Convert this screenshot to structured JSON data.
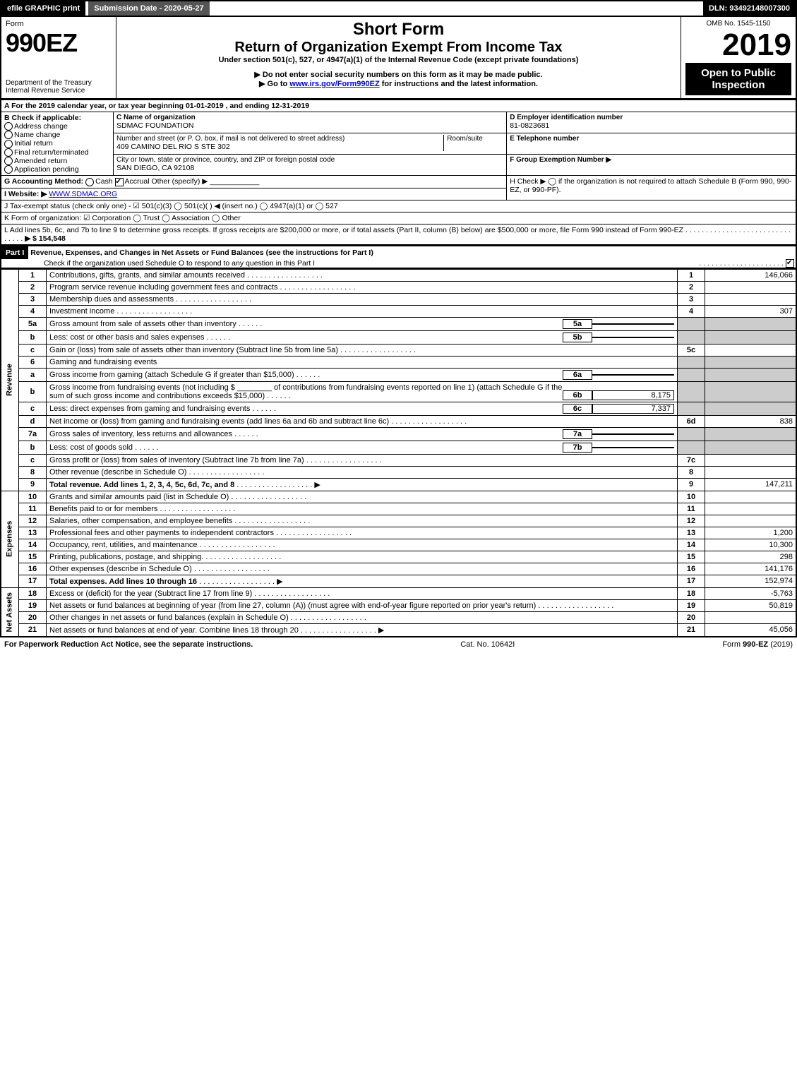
{
  "topbar": {
    "efile": "efile GRAPHIC print",
    "submission": "Submission Date - 2020-05-27",
    "dln": "DLN: 93492148007300"
  },
  "header": {
    "form_label": "Form",
    "form_number": "990EZ",
    "dept": "Department of the Treasury",
    "irs": "Internal Revenue Service",
    "short_form": "Short Form",
    "return_title": "Return of Organization Exempt From Income Tax",
    "under": "Under section 501(c), 527, or 4947(a)(1) of the Internal Revenue Code (except private foundations)",
    "warn": "▶ Do not enter social security numbers on this form as it may be made public.",
    "goto_pre": "▶ Go to ",
    "goto_link": "www.irs.gov/Form990EZ",
    "goto_post": " for instructions and the latest information.",
    "omb": "OMB No. 1545-1150",
    "year": "2019",
    "open": "Open to Public Inspection"
  },
  "line_a": "A  For the 2019 calendar year, or tax year beginning 01-01-2019 , and ending 12-31-2019",
  "section_b": {
    "title": "B  Check if applicable:",
    "items": [
      "Address change",
      "Name change",
      "Initial return",
      "Final return/terminated",
      "Amended return",
      "Application pending"
    ]
  },
  "section_c": {
    "name_label": "C Name of organization",
    "name": "SDMAC FOUNDATION",
    "street_label": "Number and street (or P. O. box, if mail is not delivered to street address)",
    "room_label": "Room/suite",
    "street": "409 CAMINO DEL RIO S STE 302",
    "city_label": "City or town, state or province, country, and ZIP or foreign postal code",
    "city": "SAN DIEGO, CA  92108"
  },
  "section_d": {
    "label": "D Employer identification number",
    "value": "81-0823681"
  },
  "section_e": {
    "label": "E Telephone number",
    "value": ""
  },
  "section_f": {
    "label": "F Group Exemption Number  ▶",
    "value": ""
  },
  "line_g": {
    "label": "G Accounting Method:",
    "cash": "Cash",
    "accrual": "Accrual",
    "other": "Other (specify) ▶"
  },
  "line_h": "H  Check ▶  ◯ if the organization is not required to attach Schedule B (Form 990, 990-EZ, or 990-PF).",
  "line_i": {
    "label": "I Website: ▶",
    "value": "WWW.SDMAC.ORG"
  },
  "line_j": "J Tax-exempt status (check only one) - ☑ 501(c)(3) ◯ 501(c)(  ) ◀ (insert no.) ◯ 4947(a)(1) or ◯ 527",
  "line_k": "K Form of organization:  ☑ Corporation  ◯ Trust  ◯ Association  ◯ Other",
  "line_l": {
    "text": "L Add lines 5b, 6c, and 7b to line 9 to determine gross receipts. If gross receipts are $200,000 or more, or if total assets (Part II, column (B) below) are $500,000 or more, file Form 990 instead of Form 990-EZ",
    "amount": "▶ $ 154,548"
  },
  "part1": {
    "label": "Part I",
    "title": "Revenue, Expenses, and Changes in Net Assets or Fund Balances (see the instructions for Part I)",
    "check": "Check if the organization used Schedule O to respond to any question in this Part I"
  },
  "sides": {
    "revenue": "Revenue",
    "expenses": "Expenses",
    "netassets": "Net Assets"
  },
  "rows": [
    {
      "n": "1",
      "desc": "Contributions, gifts, grants, and similar amounts received",
      "col": "1",
      "amt": "146,066"
    },
    {
      "n": "2",
      "desc": "Program service revenue including government fees and contracts",
      "col": "2",
      "amt": ""
    },
    {
      "n": "3",
      "desc": "Membership dues and assessments",
      "col": "3",
      "amt": ""
    },
    {
      "n": "4",
      "desc": "Investment income",
      "col": "4",
      "amt": "307"
    },
    {
      "n": "5a",
      "desc": "Gross amount from sale of assets other than inventory",
      "sub": "5a",
      "subval": ""
    },
    {
      "n": "b",
      "desc": "Less: cost or other basis and sales expenses",
      "sub": "5b",
      "subval": ""
    },
    {
      "n": "c",
      "desc": "Gain or (loss) from sale of assets other than inventory (Subtract line 5b from line 5a)",
      "col": "5c",
      "amt": ""
    },
    {
      "n": "6",
      "desc": "Gaming and fundraising events",
      "plain": true
    },
    {
      "n": "a",
      "desc": "Gross income from gaming (attach Schedule G if greater than $15,000)",
      "sub": "6a",
      "subval": ""
    },
    {
      "n": "b",
      "desc": "Gross income from fundraising events (not including $ ________ of contributions from fundraising events reported on line 1) (attach Schedule G if the sum of such gross income and contributions exceeds $15,000)",
      "sub": "6b",
      "subval": "8,175",
      "tall": true
    },
    {
      "n": "c",
      "desc": "Less: direct expenses from gaming and fundraising events",
      "sub": "6c",
      "subval": "7,337"
    },
    {
      "n": "d",
      "desc": "Net income or (loss) from gaming and fundraising events (add lines 6a and 6b and subtract line 6c)",
      "col": "6d",
      "amt": "838"
    },
    {
      "n": "7a",
      "desc": "Gross sales of inventory, less returns and allowances",
      "sub": "7a",
      "subval": ""
    },
    {
      "n": "b",
      "desc": "Less: cost of goods sold",
      "sub": "7b",
      "subval": ""
    },
    {
      "n": "c",
      "desc": "Gross profit or (loss) from sales of inventory (Subtract line 7b from line 7a)",
      "col": "7c",
      "amt": ""
    },
    {
      "n": "8",
      "desc": "Other revenue (describe in Schedule O)",
      "col": "8",
      "amt": ""
    },
    {
      "n": "9",
      "desc": "Total revenue. Add lines 1, 2, 3, 4, 5c, 6d, 7c, and 8",
      "col": "9",
      "amt": "147,211",
      "bold": true,
      "arrow": true
    }
  ],
  "exp_rows": [
    {
      "n": "10",
      "desc": "Grants and similar amounts paid (list in Schedule O)",
      "col": "10",
      "amt": ""
    },
    {
      "n": "11",
      "desc": "Benefits paid to or for members",
      "col": "11",
      "amt": ""
    },
    {
      "n": "12",
      "desc": "Salaries, other compensation, and employee benefits",
      "col": "12",
      "amt": ""
    },
    {
      "n": "13",
      "desc": "Professional fees and other payments to independent contractors",
      "col": "13",
      "amt": "1,200"
    },
    {
      "n": "14",
      "desc": "Occupancy, rent, utilities, and maintenance",
      "col": "14",
      "amt": "10,300"
    },
    {
      "n": "15",
      "desc": "Printing, publications, postage, and shipping.",
      "col": "15",
      "amt": "298"
    },
    {
      "n": "16",
      "desc": "Other expenses (describe in Schedule O)",
      "col": "16",
      "amt": "141,176"
    },
    {
      "n": "17",
      "desc": "Total expenses. Add lines 10 through 16",
      "col": "17",
      "amt": "152,974",
      "bold": true,
      "arrow": true
    }
  ],
  "na_rows": [
    {
      "n": "18",
      "desc": "Excess or (deficit) for the year (Subtract line 17 from line 9)",
      "col": "18",
      "amt": "-5,763"
    },
    {
      "n": "19",
      "desc": "Net assets or fund balances at beginning of year (from line 27, column (A)) (must agree with end-of-year figure reported on prior year's return)",
      "col": "19",
      "amt": "50,819",
      "tall": true
    },
    {
      "n": "20",
      "desc": "Other changes in net assets or fund balances (explain in Schedule O)",
      "col": "20",
      "amt": ""
    },
    {
      "n": "21",
      "desc": "Net assets or fund balances at end of year. Combine lines 18 through 20",
      "col": "21",
      "amt": "45,056",
      "arrow": true
    }
  ],
  "footer": {
    "left": "For Paperwork Reduction Act Notice, see the separate instructions.",
    "mid": "Cat. No. 10642I",
    "right": "Form 990-EZ (2019)"
  }
}
